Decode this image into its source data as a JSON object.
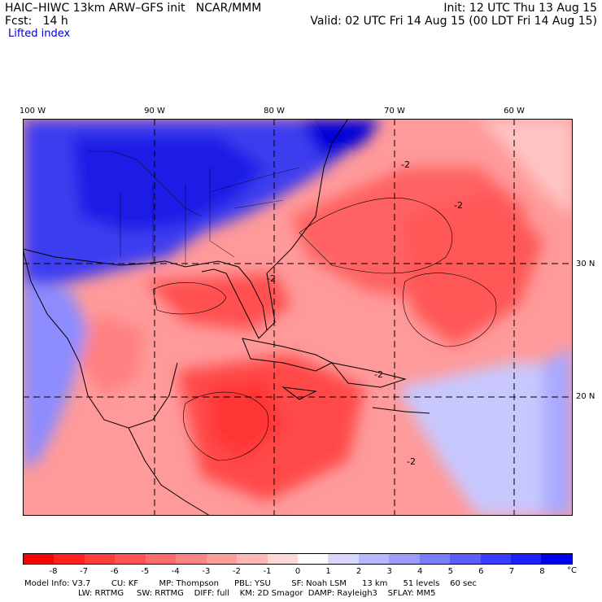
{
  "header": {
    "title": "HAIC–HIWC 13km ARW–GFS init   NCAR/MMM",
    "forecast": "Fcst:   14 h",
    "field": "Lifted index",
    "init": "Init: 12 UTC Thu 13 Aug 15",
    "valid": "Valid: 02 UTC Fri 14 Aug 15 (00 LDT Fri 14 Aug 15)"
  },
  "map": {
    "lon_labels": [
      "100 W",
      "90 W",
      "80 W",
      "70 W",
      "60 W"
    ],
    "lat_labels": [
      "30 N",
      "20 N"
    ],
    "contour_labels": [
      "-2",
      "-2",
      "-2",
      "-2",
      "-2"
    ]
  },
  "colorbar": {
    "levels": [
      "-8",
      "-7",
      "-6",
      "-5",
      "-4",
      "-3",
      "-2",
      "-1",
      "0",
      "1",
      "2",
      "3",
      "4",
      "5",
      "6",
      "7",
      "8"
    ],
    "unit": "°C",
    "colors": [
      "#ff0000",
      "#ff2020",
      "#ff3c3c",
      "#ff5454",
      "#ff6c6c",
      "#ff8484",
      "#ff9c9c",
      "#ffb8b8",
      "#ffd8d8",
      "#ffffff",
      "#d8d8ff",
      "#b8b8ff",
      "#9c9cff",
      "#7c7cff",
      "#5c5cff",
      "#3c3cff",
      "#1e1eff",
      "#0000f0"
    ]
  },
  "model_info": {
    "line1": "Model Info: V3.7        CU: KF        MP: Thompson      PBL: YSU        SF: Noah LSM      13 km      51 levels    60 sec",
    "line2": "LW: RRTMG     SW: RRTMG    DIFF: full    KM: 2D Smagor  DAMP: Rayleigh3    SFLAY: MM5"
  }
}
